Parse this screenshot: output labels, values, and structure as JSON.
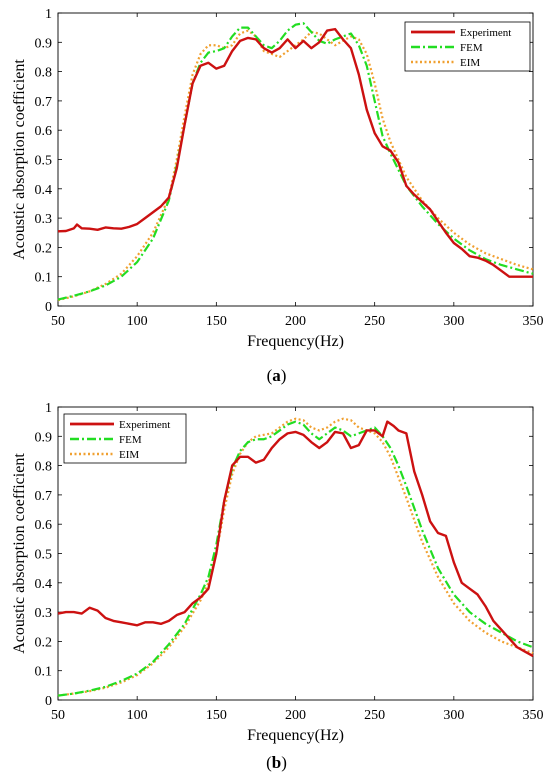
{
  "colors": {
    "experiment": "#cc1111",
    "fem": "#22dd22",
    "eim": "#f0a030"
  },
  "chart_data": [
    {
      "type": "line",
      "caption": "(a)",
      "caption_letter": "a",
      "xlabel": "Frequency(Hz)",
      "ylabel": "Acoustic absorption coefficient",
      "xlim": [
        50,
        350
      ],
      "ylim": [
        0,
        1
      ],
      "xticks": [
        50,
        100,
        150,
        200,
        250,
        300,
        350
      ],
      "yticks": [
        0,
        0.1,
        0.2,
        0.3,
        0.4,
        0.5,
        0.6,
        0.7,
        0.8,
        0.9,
        1
      ],
      "grid": false,
      "legend": "top-right",
      "series": [
        {
          "name": "Experiment",
          "style": "solid",
          "x": [
            50,
            55,
            60,
            62,
            65,
            70,
            75,
            80,
            85,
            90,
            95,
            100,
            105,
            110,
            115,
            120,
            125,
            130,
            135,
            140,
            145,
            150,
            155,
            160,
            165,
            170,
            175,
            180,
            185,
            190,
            195,
            200,
            205,
            210,
            215,
            220,
            225,
            230,
            235,
            240,
            245,
            250,
            255,
            260,
            265,
            270,
            275,
            280,
            285,
            290,
            295,
            300,
            305,
            310,
            315,
            320,
            325,
            330,
            335,
            340,
            345,
            350
          ],
          "y": [
            0.255,
            0.256,
            0.265,
            0.278,
            0.265,
            0.264,
            0.26,
            0.268,
            0.265,
            0.264,
            0.27,
            0.28,
            0.3,
            0.32,
            0.34,
            0.37,
            0.47,
            0.62,
            0.76,
            0.82,
            0.83,
            0.81,
            0.82,
            0.87,
            0.905,
            0.915,
            0.91,
            0.88,
            0.865,
            0.88,
            0.91,
            0.88,
            0.905,
            0.88,
            0.9,
            0.94,
            0.945,
            0.91,
            0.88,
            0.79,
            0.67,
            0.59,
            0.545,
            0.53,
            0.49,
            0.41,
            0.38,
            0.355,
            0.33,
            0.29,
            0.25,
            0.215,
            0.195,
            0.17,
            0.165,
            0.155,
            0.14,
            0.12,
            0.1,
            0.1,
            0.1,
            0.1
          ]
        },
        {
          "name": "FEM",
          "style": "dashdot",
          "x": [
            50,
            60,
            70,
            80,
            90,
            100,
            110,
            120,
            125,
            130,
            135,
            140,
            145,
            150,
            155,
            160,
            165,
            170,
            175,
            180,
            185,
            190,
            195,
            200,
            205,
            210,
            215,
            220,
            225,
            230,
            235,
            240,
            245,
            250,
            255,
            260,
            270,
            280,
            290,
            300,
            310,
            320,
            330,
            340,
            350
          ],
          "y": [
            0.022,
            0.035,
            0.05,
            0.07,
            0.1,
            0.15,
            0.23,
            0.36,
            0.48,
            0.62,
            0.76,
            0.83,
            0.865,
            0.87,
            0.88,
            0.92,
            0.95,
            0.95,
            0.92,
            0.89,
            0.88,
            0.905,
            0.94,
            0.96,
            0.965,
            0.935,
            0.905,
            0.895,
            0.91,
            0.92,
            0.93,
            0.89,
            0.82,
            0.7,
            0.58,
            0.52,
            0.41,
            0.34,
            0.28,
            0.23,
            0.19,
            0.16,
            0.14,
            0.125,
            0.11
          ]
        },
        {
          "name": "EIM",
          "style": "dotted",
          "x": [
            50,
            60,
            70,
            80,
            90,
            100,
            110,
            120,
            125,
            130,
            135,
            140,
            145,
            150,
            155,
            160,
            165,
            170,
            175,
            180,
            185,
            190,
            195,
            200,
            205,
            210,
            215,
            220,
            225,
            230,
            235,
            240,
            245,
            250,
            255,
            260,
            270,
            280,
            290,
            300,
            310,
            320,
            330,
            340,
            350
          ],
          "y": [
            0.02,
            0.033,
            0.05,
            0.075,
            0.11,
            0.17,
            0.25,
            0.37,
            0.5,
            0.65,
            0.79,
            0.86,
            0.89,
            0.89,
            0.88,
            0.89,
            0.93,
            0.94,
            0.92,
            0.87,
            0.86,
            0.85,
            0.87,
            0.89,
            0.91,
            0.935,
            0.93,
            0.91,
            0.89,
            0.905,
            0.92,
            0.91,
            0.86,
            0.76,
            0.64,
            0.56,
            0.44,
            0.36,
            0.3,
            0.25,
            0.21,
            0.18,
            0.16,
            0.14,
            0.125
          ]
        }
      ]
    },
    {
      "type": "line",
      "caption": "(b)",
      "caption_letter": "b",
      "xlabel": "Frequency(Hz)",
      "ylabel": "Acoustic absorption coefficient",
      "xlim": [
        50,
        350
      ],
      "ylim": [
        0,
        1
      ],
      "xticks": [
        50,
        100,
        150,
        200,
        250,
        300,
        350
      ],
      "yticks": [
        0,
        0.1,
        0.2,
        0.3,
        0.4,
        0.5,
        0.6,
        0.7,
        0.8,
        0.9,
        1
      ],
      "grid": false,
      "legend": "top-left",
      "series": [
        {
          "name": "Experiment",
          "style": "solid",
          "x": [
            50,
            55,
            60,
            65,
            70,
            75,
            80,
            85,
            90,
            95,
            100,
            105,
            110,
            115,
            120,
            125,
            130,
            135,
            140,
            145,
            150,
            155,
            160,
            165,
            170,
            175,
            180,
            185,
            190,
            195,
            200,
            205,
            210,
            215,
            220,
            225,
            230,
            235,
            240,
            245,
            250,
            255,
            258,
            262,
            265,
            270,
            275,
            280,
            285,
            290,
            295,
            300,
            305,
            310,
            315,
            320,
            325,
            330,
            335,
            340,
            345,
            350
          ],
          "y": [
            0.295,
            0.3,
            0.3,
            0.295,
            0.315,
            0.305,
            0.28,
            0.27,
            0.265,
            0.26,
            0.255,
            0.265,
            0.265,
            0.26,
            0.27,
            0.29,
            0.3,
            0.33,
            0.35,
            0.38,
            0.5,
            0.68,
            0.8,
            0.83,
            0.83,
            0.81,
            0.82,
            0.86,
            0.89,
            0.91,
            0.915,
            0.905,
            0.88,
            0.86,
            0.88,
            0.915,
            0.91,
            0.86,
            0.87,
            0.92,
            0.92,
            0.9,
            0.95,
            0.935,
            0.92,
            0.91,
            0.78,
            0.7,
            0.61,
            0.57,
            0.56,
            0.47,
            0.4,
            0.38,
            0.36,
            0.32,
            0.27,
            0.24,
            0.21,
            0.18,
            0.165,
            0.15
          ]
        },
        {
          "name": "FEM",
          "style": "dashdot",
          "x": [
            50,
            60,
            70,
            80,
            90,
            100,
            110,
            120,
            130,
            140,
            145,
            150,
            155,
            160,
            165,
            170,
            175,
            180,
            185,
            190,
            195,
            200,
            205,
            210,
            215,
            220,
            225,
            230,
            235,
            240,
            245,
            250,
            255,
            260,
            265,
            270,
            280,
            290,
            300,
            310,
            320,
            330,
            340,
            350
          ],
          "y": [
            0.015,
            0.022,
            0.032,
            0.045,
            0.065,
            0.09,
            0.13,
            0.19,
            0.26,
            0.36,
            0.42,
            0.53,
            0.68,
            0.79,
            0.85,
            0.88,
            0.89,
            0.89,
            0.9,
            0.92,
            0.94,
            0.95,
            0.94,
            0.91,
            0.89,
            0.91,
            0.93,
            0.92,
            0.9,
            0.91,
            0.92,
            0.93,
            0.9,
            0.86,
            0.8,
            0.73,
            0.58,
            0.45,
            0.36,
            0.3,
            0.26,
            0.23,
            0.2,
            0.18
          ]
        },
        {
          "name": "EIM",
          "style": "dotted",
          "x": [
            50,
            60,
            70,
            80,
            90,
            100,
            110,
            120,
            130,
            140,
            145,
            150,
            155,
            160,
            165,
            170,
            175,
            180,
            185,
            190,
            195,
            200,
            205,
            210,
            215,
            220,
            225,
            230,
            235,
            240,
            245,
            250,
            255,
            260,
            265,
            270,
            280,
            290,
            300,
            310,
            320,
            330,
            340,
            350
          ],
          "y": [
            0.015,
            0.022,
            0.03,
            0.042,
            0.06,
            0.085,
            0.125,
            0.18,
            0.25,
            0.34,
            0.4,
            0.5,
            0.65,
            0.77,
            0.84,
            0.88,
            0.9,
            0.905,
            0.91,
            0.93,
            0.95,
            0.96,
            0.955,
            0.93,
            0.92,
            0.93,
            0.95,
            0.96,
            0.955,
            0.93,
            0.92,
            0.91,
            0.88,
            0.83,
            0.76,
            0.69,
            0.54,
            0.42,
            0.33,
            0.27,
            0.23,
            0.2,
            0.18,
            0.16
          ]
        }
      ]
    }
  ]
}
